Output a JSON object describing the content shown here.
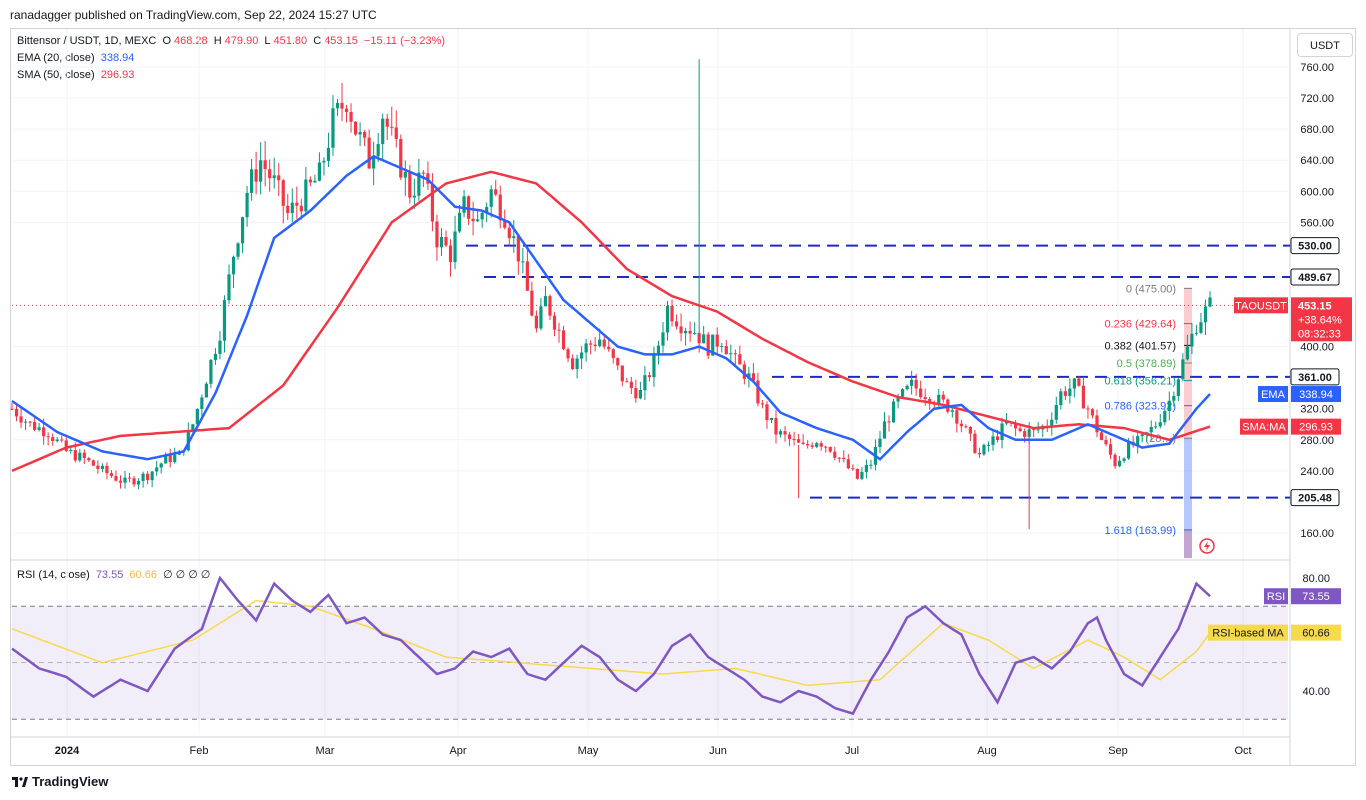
{
  "header": {
    "published": "ranadagger published on TradingView.com, Sep 22, 2024 15:27 UTC"
  },
  "legend": {
    "symbol": "Bittensor / USDT, 1D, MEXC",
    "o_label": "O",
    "open": "468.28",
    "h_label": "H",
    "high": "479.90",
    "l_label": "L",
    "low": "451.80",
    "c_label": "C",
    "close": "453.15",
    "change": "−15.11 (−3.23%)",
    "ema_label": "EMA (20, close)",
    "ema_value": "338.94",
    "sma_label": "SMA (50, close)",
    "sma_value": "296.93",
    "rsi_label": "RSI (14, close)",
    "rsi_value": "73.55",
    "rsi_ma_value": "60.66",
    "rsi_extra": [
      "∅",
      "∅",
      "∅",
      "∅"
    ]
  },
  "currency_button": "USDT",
  "footer": {
    "brand": "TradingView"
  },
  "colors": {
    "up": "#089981",
    "down": "#f23645",
    "ema": "#2962ff",
    "sma": "#f23645",
    "rsi": "#7e57c2",
    "rsi_ma": "#f7d94c",
    "levels": "#1e2ac2"
  },
  "chart_data": {
    "type": "candlestick",
    "y_ticks": [
      "760.00",
      "720.00",
      "680.00",
      "640.00",
      "600.00",
      "560.00",
      "400.00",
      "320.00",
      "280.00",
      "240.00",
      "160.00"
    ],
    "x_ticks": [
      "2024",
      "Feb",
      "Mar",
      "Apr",
      "May",
      "Jun",
      "Jul",
      "Aug",
      "Sep",
      "Oct"
    ],
    "ylim": [
      120,
      800
    ],
    "support_resistance": [
      {
        "label": "530.00",
        "value": 530.0
      },
      {
        "label": "489.67",
        "value": 489.67
      },
      {
        "label": "361.00",
        "value": 361.0
      },
      {
        "label": "205.48",
        "value": 205.48
      }
    ],
    "fibonacci": [
      {
        "label": "0 (475.00)",
        "value": 475.0
      },
      {
        "label": "0.236 (429.64)",
        "value": 429.64
      },
      {
        "label": "0.382 (401.57)",
        "value": 401.57
      },
      {
        "label": "0.5 (378.89)",
        "value": 378.89
      },
      {
        "label": "0.618 (356.21)",
        "value": 356.21
      },
      {
        "label": "0.786 (323.92)",
        "value": 323.92
      },
      {
        "label": "(28…)",
        "value": 282
      },
      {
        "label": "1.618 (163.99)",
        "value": 163.99
      }
    ],
    "price_tag": {
      "label": "TAOUSDT",
      "price": "453.15",
      "change": "+38.64%",
      "timer": "08:32:33"
    },
    "ema_tag": {
      "label": "EMA",
      "value": "338.94"
    },
    "sma_tag": {
      "label": "SMA:MA",
      "value": "296.93"
    },
    "price_anchors": [
      [
        0,
        320
      ],
      [
        4,
        300
      ],
      [
        8,
        290
      ],
      [
        12,
        265
      ],
      [
        16,
        255
      ],
      [
        20,
        240
      ],
      [
        25,
        225
      ],
      [
        30,
        235
      ],
      [
        34,
        255
      ],
      [
        37,
        260
      ],
      [
        40,
        300
      ],
      [
        43,
        360
      ],
      [
        46,
        420
      ],
      [
        49,
        520
      ],
      [
        52,
        600
      ],
      [
        55,
        640
      ],
      [
        58,
        610
      ],
      [
        61,
        570
      ],
      [
        64,
        590
      ],
      [
        68,
        620
      ],
      [
        71,
        690
      ],
      [
        74,
        720
      ],
      [
        76,
        680
      ],
      [
        79,
        640
      ],
      [
        82,
        700
      ],
      [
        85,
        650
      ],
      [
        88,
        600
      ],
      [
        91,
        620
      ],
      [
        94,
        540
      ],
      [
        97,
        520
      ],
      [
        100,
        580
      ],
      [
        103,
        560
      ],
      [
        106,
        600
      ],
      [
        109,
        570
      ],
      [
        112,
        520
      ],
      [
        116,
        420
      ],
      [
        118,
        460
      ],
      [
        121,
        420
      ],
      [
        124,
        380
      ],
      [
        127,
        400
      ],
      [
        130,
        410
      ],
      [
        133,
        380
      ],
      [
        136,
        350
      ],
      [
        139,
        340
      ],
      [
        142,
        380
      ],
      [
        145,
        450
      ],
      [
        148,
        430
      ],
      [
        151,
        420
      ],
      [
        154,
        400
      ],
      [
        157,
        410
      ],
      [
        160,
        380
      ],
      [
        163,
        360
      ],
      [
        166,
        320
      ],
      [
        169,
        290
      ],
      [
        172,
        280
      ],
      [
        175,
        270
      ],
      [
        178,
        280
      ],
      [
        181,
        270
      ],
      [
        184,
        250
      ],
      [
        187,
        230
      ],
      [
        190,
        250
      ],
      [
        193,
        300
      ],
      [
        196,
        330
      ],
      [
        199,
        350
      ],
      [
        202,
        340
      ],
      [
        205,
        330
      ],
      [
        208,
        320
      ],
      [
        211,
        290
      ],
      [
        214,
        260
      ],
      [
        217,
        280
      ],
      [
        220,
        300
      ],
      [
        223,
        290
      ],
      [
        226,
        290
      ],
      [
        229,
        300
      ],
      [
        232,
        340
      ],
      [
        235,
        350
      ],
      [
        238,
        320
      ],
      [
        241,
        280
      ],
      [
        244,
        250
      ],
      [
        247,
        270
      ],
      [
        250,
        280
      ],
      [
        253,
        300
      ],
      [
        256,
        330
      ],
      [
        259,
        380
      ],
      [
        262,
        430
      ],
      [
        265,
        453
      ]
    ],
    "wicks": [
      [
        152,
        770
      ],
      [
        174,
        205
      ],
      [
        225,
        165
      ]
    ],
    "ema_anchors": [
      [
        0,
        330
      ],
      [
        10,
        290
      ],
      [
        20,
        265
      ],
      [
        30,
        255
      ],
      [
        38,
        265
      ],
      [
        45,
        340
      ],
      [
        52,
        440
      ],
      [
        58,
        540
      ],
      [
        66,
        575
      ],
      [
        74,
        620
      ],
      [
        80,
        645
      ],
      [
        86,
        630
      ],
      [
        92,
        615
      ],
      [
        98,
        580
      ],
      [
        104,
        575
      ],
      [
        110,
        560
      ],
      [
        116,
        510
      ],
      [
        122,
        460
      ],
      [
        128,
        430
      ],
      [
        134,
        400
      ],
      [
        140,
        390
      ],
      [
        146,
        390
      ],
      [
        152,
        400
      ],
      [
        158,
        385
      ],
      [
        164,
        355
      ],
      [
        170,
        315
      ],
      [
        178,
        295
      ],
      [
        186,
        280
      ],
      [
        192,
        255
      ],
      [
        198,
        290
      ],
      [
        204,
        320
      ],
      [
        210,
        325
      ],
      [
        216,
        295
      ],
      [
        222,
        280
      ],
      [
        230,
        280
      ],
      [
        238,
        300
      ],
      [
        244,
        285
      ],
      [
        250,
        270
      ],
      [
        256,
        275
      ],
      [
        262,
        320
      ],
      [
        265,
        339
      ]
    ],
    "sma_anchors": [
      [
        0,
        240
      ],
      [
        12,
        270
      ],
      [
        24,
        285
      ],
      [
        36,
        290
      ],
      [
        48,
        295
      ],
      [
        60,
        350
      ],
      [
        72,
        450
      ],
      [
        84,
        560
      ],
      [
        96,
        610
      ],
      [
        106,
        625
      ],
      [
        116,
        610
      ],
      [
        126,
        560
      ],
      [
        136,
        500
      ],
      [
        146,
        465
      ],
      [
        156,
        445
      ],
      [
        166,
        410
      ],
      [
        176,
        380
      ],
      [
        186,
        355
      ],
      [
        196,
        335
      ],
      [
        206,
        325
      ],
      [
        216,
        310
      ],
      [
        226,
        295
      ],
      [
        236,
        300
      ],
      [
        246,
        295
      ],
      [
        256,
        280
      ],
      [
        265,
        297
      ]
    ],
    "rsi_anchors": [
      [
        0,
        55
      ],
      [
        6,
        48
      ],
      [
        12,
        45
      ],
      [
        18,
        38
      ],
      [
        24,
        44
      ],
      [
        30,
        40
      ],
      [
        36,
        55
      ],
      [
        42,
        62
      ],
      [
        46,
        80
      ],
      [
        50,
        72
      ],
      [
        54,
        65
      ],
      [
        58,
        78
      ],
      [
        62,
        72
      ],
      [
        66,
        68
      ],
      [
        70,
        74
      ],
      [
        74,
        64
      ],
      [
        78,
        66
      ],
      [
        82,
        60
      ],
      [
        86,
        58
      ],
      [
        90,
        52
      ],
      [
        94,
        46
      ],
      [
        98,
        48
      ],
      [
        102,
        54
      ],
      [
        106,
        52
      ],
      [
        110,
        55
      ],
      [
        114,
        46
      ],
      [
        118,
        44
      ],
      [
        122,
        50
      ],
      [
        126,
        56
      ],
      [
        130,
        52
      ],
      [
        134,
        44
      ],
      [
        138,
        40
      ],
      [
        142,
        46
      ],
      [
        146,
        56
      ],
      [
        150,
        60
      ],
      [
        154,
        52
      ],
      [
        158,
        48
      ],
      [
        162,
        44
      ],
      [
        166,
        38
      ],
      [
        170,
        36
      ],
      [
        174,
        40
      ],
      [
        178,
        38
      ],
      [
        182,
        34
      ],
      [
        186,
        32
      ],
      [
        190,
        44
      ],
      [
        194,
        54
      ],
      [
        198,
        66
      ],
      [
        202,
        70
      ],
      [
        206,
        64
      ],
      [
        210,
        60
      ],
      [
        214,
        46
      ],
      [
        218,
        36
      ],
      [
        222,
        50
      ],
      [
        226,
        52
      ],
      [
        230,
        48
      ],
      [
        234,
        54
      ],
      [
        238,
        64
      ],
      [
        240,
        66
      ],
      [
        242,
        58
      ],
      [
        246,
        46
      ],
      [
        250,
        42
      ],
      [
        254,
        52
      ],
      [
        258,
        62
      ],
      [
        262,
        78
      ],
      [
        265,
        73.55
      ]
    ],
    "rsi_ma_anchors": [
      [
        0,
        62
      ],
      [
        20,
        50
      ],
      [
        40,
        58
      ],
      [
        54,
        72
      ],
      [
        66,
        70
      ],
      [
        80,
        62
      ],
      [
        96,
        52
      ],
      [
        112,
        50
      ],
      [
        128,
        48
      ],
      [
        144,
        46
      ],
      [
        160,
        48
      ],
      [
        176,
        42
      ],
      [
        192,
        44
      ],
      [
        206,
        64
      ],
      [
        216,
        58
      ],
      [
        226,
        48
      ],
      [
        238,
        58
      ],
      [
        246,
        52
      ],
      [
        254,
        44
      ],
      [
        262,
        54
      ],
      [
        265,
        60.66
      ]
    ],
    "rsi_ticks": [
      "80.00",
      "40.00"
    ],
    "rsi_tag": {
      "label": "RSI",
      "value": "73.55"
    },
    "rsi_ma_tag": {
      "label": "RSI-based MA",
      "value": "60.66"
    }
  }
}
